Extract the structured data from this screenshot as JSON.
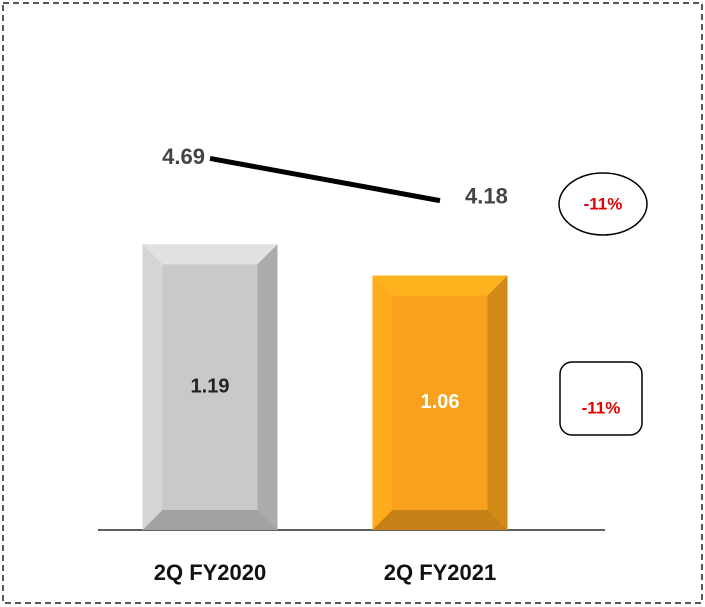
{
  "chart_data": {
    "type": "bar",
    "categories": [
      "2Q FY2020",
      "2Q FY2021"
    ],
    "series": [
      {
        "type": "bar",
        "colors": [
          "#c9c9c9",
          "#f7a11c"
        ],
        "label_colors": [
          "#222222",
          "#ffffff"
        ],
        "values": [
          1.19,
          1.06
        ]
      },
      {
        "type": "line",
        "axis": "y2",
        "color": "#000000",
        "values": [
          4.69,
          4.18
        ]
      }
    ],
    "ylim": [
      0,
      2
    ],
    "y2lim": [
      0.2,
      6
    ],
    "annotations": [
      {
        "text": "-11%",
        "shape": "ellipse"
      },
      {
        "text": "-11%",
        "shape": "rounded-rect"
      }
    ]
  }
}
